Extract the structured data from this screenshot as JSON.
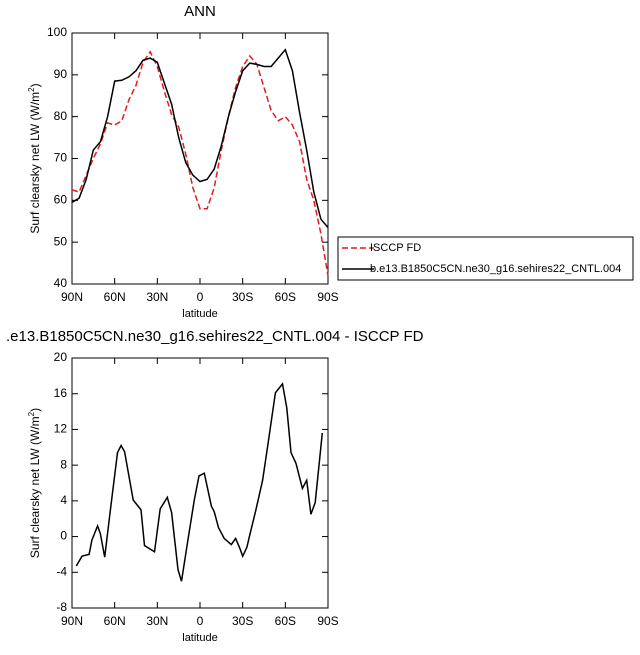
{
  "chart_data": [
    {
      "type": "line",
      "title": "ANN",
      "ylabel": [
        "Surf clearsky net LW (W/m",
        "2",
        ")"
      ],
      "xlabel": "latitude",
      "xlim": [
        90,
        -90
      ],
      "ylim": [
        40,
        100
      ],
      "xticks": [
        {
          "value": 90,
          "label": "90N"
        },
        {
          "value": 60,
          "label": "60N"
        },
        {
          "value": 30,
          "label": "30N"
        },
        0,
        {
          "value": -30,
          "label": "30S"
        },
        {
          "value": -60,
          "label": "60S"
        },
        {
          "value": -90,
          "label": "90S"
        }
      ],
      "yticks": [
        40,
        50,
        60,
        70,
        80,
        90,
        100
      ],
      "series": [
        {
          "name": "ISCCP FD",
          "color": "#e41a1c",
          "dash": true,
          "x": [
            90,
            85,
            80,
            75,
            70,
            65,
            60,
            55,
            50,
            45,
            40,
            35,
            30,
            25,
            20,
            15,
            10,
            5,
            0,
            -5,
            -10,
            -15,
            -20,
            -25,
            -30,
            -35,
            -40,
            -45,
            -50,
            -55,
            -60,
            -65,
            -70,
            -75,
            -80,
            -85,
            -90
          ],
          "values": [
            62.5,
            62,
            66,
            70,
            73.5,
            78.5,
            78,
            79,
            84,
            87.5,
            93,
            95.5,
            92,
            86,
            80.5,
            77.5,
            71,
            63,
            58,
            58,
            63,
            72,
            80,
            87,
            92,
            94.5,
            92.5,
            87,
            81.5,
            79,
            80,
            78,
            74,
            65,
            60,
            52,
            42
          ]
        },
        {
          "name": "b.e13.B1850C5CN.ne30_g16.sehires22_CNTL.004",
          "color": "#000000",
          "dash": false,
          "x": [
            90,
            85,
            80,
            75,
            70,
            65,
            60,
            55,
            50,
            45,
            40,
            35,
            30,
            25,
            20,
            15,
            10,
            5,
            0,
            -5,
            -10,
            -15,
            -20,
            -25,
            -30,
            -35,
            -40,
            -45,
            -50,
            -55,
            -60,
            -65,
            -70,
            -75,
            -80,
            -85,
            -90
          ],
          "values": [
            59.5,
            60.5,
            65,
            72,
            74,
            80,
            88.5,
            88.7,
            89.5,
            91,
            93.5,
            94,
            93,
            88,
            83,
            75,
            69,
            66,
            64.5,
            65,
            67.5,
            73,
            80,
            86,
            91,
            92.8,
            92.5,
            92,
            92,
            94,
            96,
            91,
            81,
            72,
            62,
            55.5,
            53.5
          ]
        }
      ]
    },
    {
      "type": "line",
      "title": ".e13.B1850C5CN.ne30_g16.sehires22_CNTL.004 - ISCCP FD",
      "ylabel": [
        "Surf clearsky net LW (W/m",
        "2",
        ")"
      ],
      "xlabel": "latitude",
      "xlim": [
        90,
        -90
      ],
      "ylim": [
        -8,
        20
      ],
      "xticks": [
        {
          "value": 90,
          "label": "90N"
        },
        {
          "value": 60,
          "label": "60N"
        },
        {
          "value": 30,
          "label": "30N"
        },
        0,
        {
          "value": -30,
          "label": "30S"
        },
        {
          "value": -60,
          "label": "60S"
        },
        {
          "value": -90,
          "label": "90S"
        }
      ],
      "yticks": [
        -8,
        -4,
        0,
        4,
        8,
        12,
        16,
        20
      ],
      "series": [
        {
          "color": "#000000",
          "dash": false,
          "x": [
            87,
            83,
            78,
            76,
            72,
            70,
            67,
            63,
            58,
            55.5,
            53,
            47,
            41.5,
            39,
            34,
            32,
            28,
            23,
            20,
            15.5,
            13,
            8.5,
            4,
            0.7,
            -3,
            -8,
            -10,
            -13,
            -17,
            -22,
            -25,
            -28,
            -30,
            -33,
            -35,
            -39,
            -44,
            -48,
            -53,
            -56,
            -58,
            -61,
            -64,
            -67.5,
            -72,
            -75,
            -78,
            -81,
            -86
          ],
          "values": [
            -3.3,
            -2.2,
            -2,
            -0.4,
            1.2,
            0.3,
            -2.3,
            3,
            9.4,
            10.2,
            9.5,
            4.1,
            3,
            -1,
            -1.5,
            -1.7,
            3.1,
            4.4,
            2.7,
            -3.7,
            -5,
            -0.4,
            4.1,
            6.8,
            7.1,
            3.4,
            2.8,
            1,
            -0.2,
            -0.9,
            -0.2,
            -1.3,
            -2.2,
            -1.2,
            0.2,
            2.8,
            6.3,
            10.6,
            16.1,
            16.7,
            17.1,
            14.4,
            9.4,
            8.2,
            5.4,
            6.3,
            2.5,
            3.8,
            11.6
          ]
        }
      ]
    }
  ]
}
